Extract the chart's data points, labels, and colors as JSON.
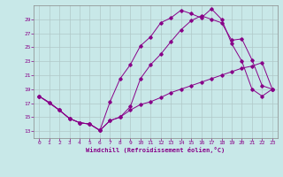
{
  "background_color": "#c8e8e8",
  "grid_color": "#b0c8c8",
  "line_color": "#880088",
  "xlabel": "Windchill (Refroidissement éolien,°C)",
  "xlim": [
    -0.5,
    23.5
  ],
  "ylim": [
    12,
    31
  ],
  "yticks": [
    13,
    15,
    17,
    19,
    21,
    23,
    25,
    27,
    29
  ],
  "xticks": [
    0,
    1,
    2,
    3,
    4,
    5,
    6,
    7,
    8,
    9,
    10,
    11,
    12,
    13,
    14,
    15,
    16,
    17,
    18,
    19,
    20,
    21,
    22,
    23
  ],
  "line1_x": [
    0,
    1,
    2,
    3,
    4,
    5,
    6,
    7,
    8,
    9,
    10,
    11,
    12,
    13,
    14,
    15,
    16,
    17,
    18,
    19,
    20,
    21,
    22,
    23
  ],
  "line1_y": [
    18.0,
    17.1,
    16.0,
    14.8,
    14.2,
    14.0,
    13.1,
    14.5,
    15.0,
    16.0,
    16.8,
    17.2,
    17.8,
    18.5,
    19.0,
    19.5,
    20.0,
    20.5,
    21.0,
    21.5,
    22.0,
    22.3,
    22.8,
    19.0
  ],
  "line2_x": [
    0,
    1,
    2,
    3,
    4,
    5,
    6,
    7,
    8,
    9,
    10,
    11,
    12,
    13,
    14,
    15,
    16,
    17,
    18,
    19,
    20,
    21,
    22,
    23
  ],
  "line2_y": [
    18.0,
    17.1,
    16.0,
    14.8,
    14.2,
    14.0,
    13.1,
    17.2,
    20.5,
    22.5,
    25.2,
    26.5,
    28.5,
    29.2,
    30.3,
    29.8,
    29.2,
    30.5,
    29.0,
    25.5,
    23.0,
    19.0,
    18.0,
    19.0
  ],
  "line3_x": [
    0,
    2,
    3,
    4,
    5,
    6,
    7,
    8,
    9,
    10,
    11,
    12,
    13,
    14,
    15,
    16,
    17,
    18,
    19,
    20,
    21,
    22,
    23
  ],
  "line3_y": [
    18.0,
    16.0,
    14.8,
    14.2,
    14.0,
    13.1,
    14.5,
    15.0,
    16.5,
    20.5,
    22.5,
    24.0,
    25.8,
    27.5,
    28.8,
    29.5,
    29.0,
    28.5,
    26.0,
    26.2,
    23.2,
    19.5,
    19.0
  ]
}
